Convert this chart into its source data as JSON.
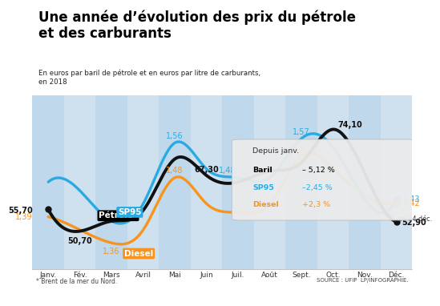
{
  "title": "Une année d’évolution des prix du pétrole\net des carburants",
  "subtitle": "En euros par baril de pétrole et en euros par litre de carburants,\nen 2018",
  "source": "SOURCE : UFIP  LP/INFOGRAPHIE.",
  "footnote": "* Brent de la mer du Nord.",
  "months": [
    "Janv.",
    "Fév.",
    "Mars",
    "Avril",
    "Mai",
    "Juin",
    "Juil.",
    "Août",
    "Sept.",
    "Oct.",
    "Nov.",
    "Déc."
  ],
  "petrole": [
    55.7,
    50.7,
    53.0,
    55.5,
    67.3,
    63.5,
    62.0,
    64.5,
    66.5,
    74.1,
    64.0,
    52.9
  ],
  "sp95": [
    1.47,
    1.45,
    1.38,
    1.42,
    1.56,
    1.5,
    1.48,
    1.48,
    1.57,
    1.55,
    1.43,
    1.43
  ],
  "diesel": [
    1.39,
    1.36,
    1.33,
    1.36,
    1.48,
    1.42,
    1.4,
    1.42,
    1.53,
    1.5,
    1.44,
    1.42
  ],
  "petrole_color": "#111111",
  "sp95_color": "#29abe2",
  "diesel_color": "#f7941d",
  "bg_color": "#cfe0ee",
  "depuis_janv_title": "Depuis janv.",
  "depuis_janv_baril_label": "Baril",
  "depuis_janv_baril_val": " – 5,12 %",
  "depuis_janv_sp95_label": "SP95",
  "depuis_janv_sp95_val": " –2,45 %",
  "depuis_janv_diesel_label": "Diesel",
  "depuis_janv_diesel_val": " +2,3 %",
  "oil_min": 42,
  "oil_max": 82,
  "fuel_min": 1.27,
  "fuel_max": 1.67
}
